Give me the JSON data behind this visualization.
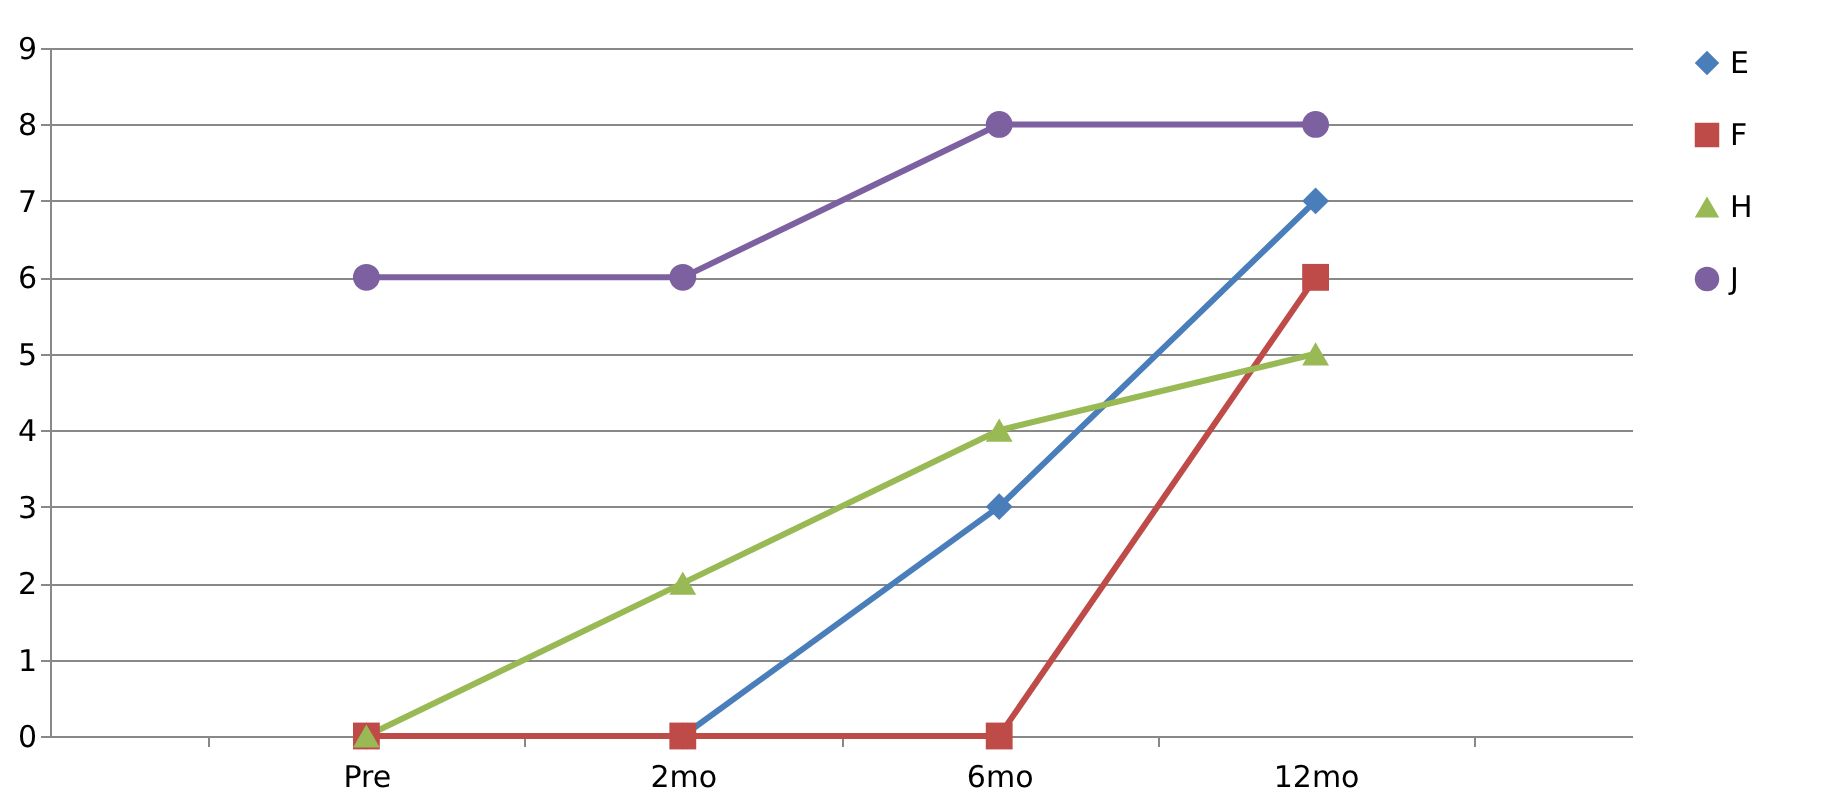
{
  "chart_data": {
    "type": "line",
    "categories": [
      "Pre",
      "2mo",
      "6mo",
      "12mo"
    ],
    "series": [
      {
        "name": "E",
        "color": "#4a7ebb",
        "marker": "diamond",
        "values": [
          0,
          0,
          3,
          7
        ]
      },
      {
        "name": "F",
        "color": "#be4b48",
        "marker": "square",
        "values": [
          0,
          0,
          0,
          6
        ]
      },
      {
        "name": "H",
        "color": "#98b954",
        "marker": "triangle",
        "values": [
          0,
          2,
          4,
          5
        ]
      },
      {
        "name": "J",
        "color": "#7d60a0",
        "marker": "circle",
        "values": [
          6,
          6,
          8,
          8
        ]
      }
    ],
    "ylim": [
      0,
      9
    ],
    "yticks": [
      0,
      1,
      2,
      3,
      4,
      5,
      6,
      7,
      8,
      9
    ],
    "grid": "y",
    "legend": "right",
    "line_style": "solid"
  }
}
